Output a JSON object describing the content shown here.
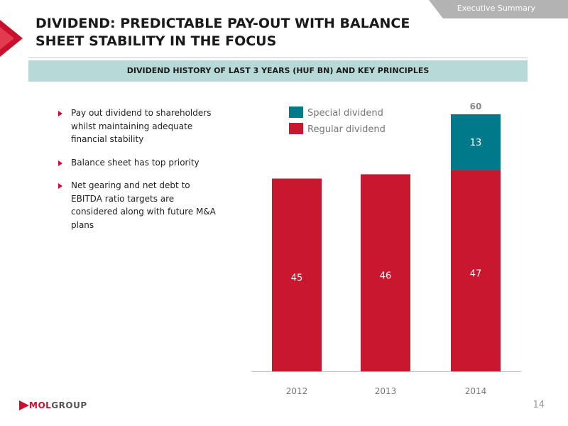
{
  "header": {
    "section_tag": "Executive Summary",
    "title": "DIVIDEND: PREDICTABLE PAY-OUT WITH BALANCE SHEET STABILITY IN THE FOCUS",
    "subtitle": "DIVIDEND HISTORY OF LAST 3 YEARS (HUF BN) AND KEY PRINCIPLES"
  },
  "bullets": [
    "Pay out dividend to shareholders whilst maintaining adequate financial stability",
    "Balance sheet has top priority",
    "Net gearing and net debt to EBITDA ratio targets are considered along with future M&A plans"
  ],
  "footer": {
    "logo_part1": "MOL",
    "logo_part2": "GROUP",
    "page_number": "14"
  },
  "colors": {
    "regular": "#c8172e",
    "special": "#007a8a",
    "subtitle_bg": "#b7d9d8",
    "tag_bg": "#b3b3b3"
  },
  "chart_data": {
    "type": "bar",
    "stacked": true,
    "categories": [
      "2012",
      "2013",
      "2014"
    ],
    "series": [
      {
        "name": "Regular dividend",
        "values": [
          45,
          46,
          47
        ],
        "color": "#c8172e"
      },
      {
        "name": "Special dividend",
        "values": [
          0,
          0,
          13
        ],
        "color": "#007a8a"
      }
    ],
    "totals": [
      null,
      null,
      60
    ],
    "ylim": [
      0,
      60
    ],
    "grid": false,
    "legend_position": "top-left"
  }
}
